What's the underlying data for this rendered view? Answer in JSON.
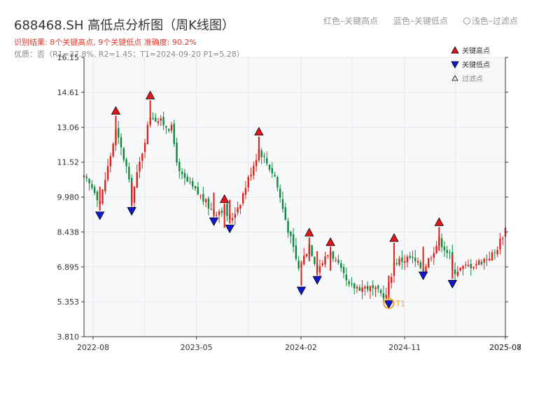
{
  "header": {
    "title": "688468.SH 高低点分析图（周K线图）",
    "result_text": "识别结果: 8个关键高点, 9个关键低点   准确度: 90.2%",
    "quality_text": "优质：否（R1=37.8%, R2=1.45；T1=2024-09-20 P1=5.28）"
  },
  "top_legend": {
    "red_label": "红色–关键高点",
    "blue_label": "蓝色–关键低点",
    "light_label": "浅色–过滤点"
  },
  "colors": {
    "up": "#e0201a",
    "down": "#0a8a3a",
    "high_marker": "#e8141c",
    "low_marker": "#1018d8",
    "t1_ring": "#f0a030",
    "title": "#333333",
    "subtitle": "#e0392b",
    "grid": "#e6e8ec",
    "plot_bg": "#f7f8fa"
  },
  "chart_data": {
    "type": "candlestick",
    "y_ticks": [
      "16.15",
      "14.61",
      "13.06",
      "11.52",
      "9.980",
      "8.438",
      "6.895",
      "5.353",
      "3.810"
    ],
    "ylim": [
      3.81,
      16.15
    ],
    "x_ticks": [
      "2022-08",
      "2023-05",
      "2024-02",
      "2024-11",
      "2025-08",
      "2025-07"
    ],
    "legend": {
      "entries": [
        {
          "label": "关键高点",
          "marker": "triangle-up",
          "color": "#e8141c"
        },
        {
          "label": "关键低点",
          "marker": "triangle-down",
          "color": "#1018d8"
        },
        {
          "label": "过滤点",
          "marker": "triangle-up-hollow",
          "color": "#999999"
        }
      ],
      "placement": "top-right"
    },
    "key_highs": [
      {
        "date": "2022-09-30",
        "price": 13.76
      },
      {
        "date": "2022-12-30",
        "price": 14.44
      },
      {
        "date": "2023-07-14",
        "price": 9.86
      },
      {
        "date": "2023-10-13",
        "price": 12.84
      },
      {
        "date": "2024-02-23",
        "price": 8.38
      },
      {
        "date": "2024-04-19",
        "price": 7.96
      },
      {
        "date": "2024-10-04",
        "price": 8.14
      },
      {
        "date": "2025-01-31",
        "price": 8.84
      }
    ],
    "key_lows": [
      {
        "date": "2022-08-19",
        "price": 9.2
      },
      {
        "date": "2022-11-11",
        "price": 9.4
      },
      {
        "date": "2023-06-16",
        "price": 8.94
      },
      {
        "date": "2023-07-28",
        "price": 8.62
      },
      {
        "date": "2024-02-02",
        "price": 5.88
      },
      {
        "date": "2024-03-15",
        "price": 6.35
      },
      {
        "date": "2024-09-20",
        "price": 5.28
      },
      {
        "date": "2024-12-20",
        "price": 6.55
      },
      {
        "date": "2025-03-07",
        "price": 6.18
      }
    ],
    "t1": {
      "label": "T1",
      "date": "2024-09-20",
      "price": 5.28
    },
    "anchors": [
      {
        "date": "2022-07-08",
        "price": 10.8
      },
      {
        "date": "2022-08-05",
        "price": 10.3
      },
      {
        "date": "2022-08-19",
        "price": 9.7
      },
      {
        "date": "2022-09-30",
        "price": 12.9
      },
      {
        "date": "2022-10-28",
        "price": 11.3
      },
      {
        "date": "2022-11-11",
        "price": 9.9
      },
      {
        "date": "2022-12-30",
        "price": 13.6
      },
      {
        "date": "2023-02-24",
        "price": 13.0
      },
      {
        "date": "2023-03-17",
        "price": 11.0
      },
      {
        "date": "2023-05-12",
        "price": 10.0
      },
      {
        "date": "2023-06-16",
        "price": 9.3
      },
      {
        "date": "2023-07-14",
        "price": 9.5
      },
      {
        "date": "2023-07-28",
        "price": 8.9
      },
      {
        "date": "2023-08-25",
        "price": 9.8
      },
      {
        "date": "2023-10-13",
        "price": 12.1
      },
      {
        "date": "2023-11-24",
        "price": 10.9
      },
      {
        "date": "2023-12-22",
        "price": 9.0
      },
      {
        "date": "2024-01-26",
        "price": 6.8
      },
      {
        "date": "2024-02-23",
        "price": 7.9
      },
      {
        "date": "2024-03-15",
        "price": 6.8
      },
      {
        "date": "2024-04-19",
        "price": 7.6
      },
      {
        "date": "2024-06-07",
        "price": 6.0
      },
      {
        "date": "2024-07-26",
        "price": 6.0
      },
      {
        "date": "2024-09-13",
        "price": 5.6
      },
      {
        "date": "2024-10-04",
        "price": 7.1
      },
      {
        "date": "2024-11-15",
        "price": 7.3
      },
      {
        "date": "2024-12-20",
        "price": 6.8
      },
      {
        "date": "2025-01-31",
        "price": 8.1
      },
      {
        "date": "2025-02-28",
        "price": 7.4
      },
      {
        "date": "2025-03-07",
        "price": 6.7
      },
      {
        "date": "2025-05-16",
        "price": 7.1
      },
      {
        "date": "2025-06-27",
        "price": 7.5
      },
      {
        "date": "2025-07-25",
        "price": 8.6
      }
    ],
    "grid": true
  }
}
